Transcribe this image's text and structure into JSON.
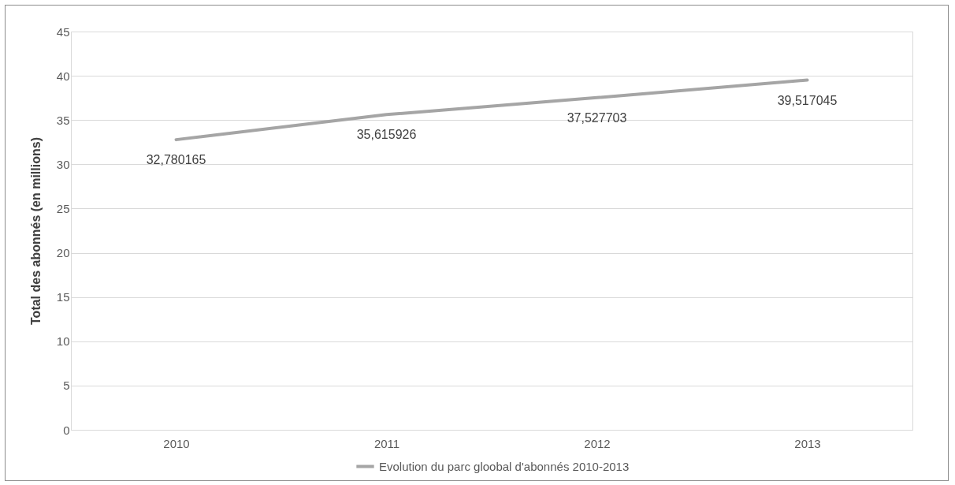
{
  "chart_data": {
    "type": "line",
    "ylabel": "Total des abonnés (en millions)",
    "categories": [
      "2010",
      "2011",
      "2012",
      "2013"
    ],
    "series": [
      {
        "name": "Evolution du parc gloobal d'abonnés 2010-2013",
        "color": "#a5a5a5",
        "values": [
          32.780165,
          35.615926,
          37.527703,
          39.517045
        ],
        "value_labels": [
          "32,780165",
          "35,615926",
          "37,527703",
          "39,517045"
        ]
      }
    ],
    "ylim": [
      0,
      45
    ],
    "yticks": [
      0,
      5,
      10,
      15,
      20,
      25,
      30,
      35,
      40,
      45
    ],
    "grid": "y",
    "legend": "bottom",
    "marker": "none",
    "line_style": "solid"
  }
}
